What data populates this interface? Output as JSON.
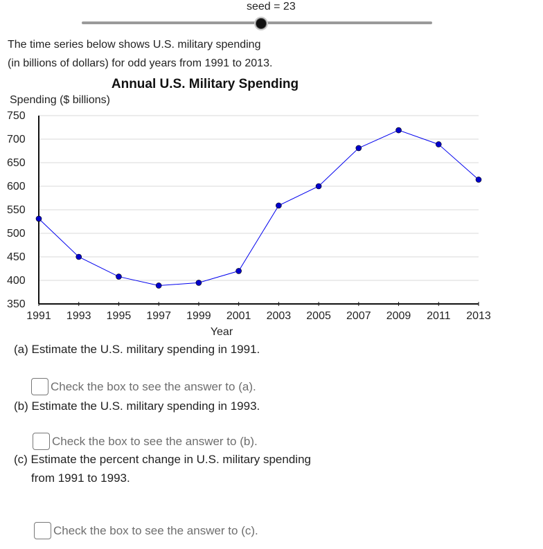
{
  "slider": {
    "label": "seed = 23",
    "value": 23
  },
  "intro": {
    "line1": "The time series below shows U.S. military spending",
    "line2": "(in billions of dollars) for odd years from 1991 to 2013."
  },
  "chart_data": {
    "type": "line",
    "title": "Annual U.S. Military Spending",
    "xlabel": "Year",
    "ylabel": "Spending ($ billions)",
    "x": [
      1991,
      1993,
      1995,
      1997,
      1999,
      2001,
      2003,
      2005,
      2007,
      2009,
      2011,
      2013
    ],
    "values": [
      531,
      450,
      408,
      389,
      395,
      420,
      559,
      600,
      681,
      719,
      689,
      614
    ],
    "ylim": [
      350,
      750
    ],
    "yticks": [
      350,
      400,
      450,
      500,
      550,
      600,
      650,
      700,
      750
    ],
    "grid": true,
    "colors": {
      "line": "#0000ee",
      "marker": "#0000cc",
      "grid": "#d9d9d9"
    }
  },
  "questions": {
    "a": "(a) Estimate the U.S. military spending in 1991.",
    "a_check": "Check the box to see the answer to (a).",
    "b": "(b) Estimate the U.S. military spending in 1993.",
    "b_check": "Check the box to see the answer to (b).",
    "c_line1": "(c) Estimate the percent change in U.S. military spending",
    "c_line2": "from 1991 to 1993.",
    "c_check": "Check the box to see the answer to (c)."
  }
}
